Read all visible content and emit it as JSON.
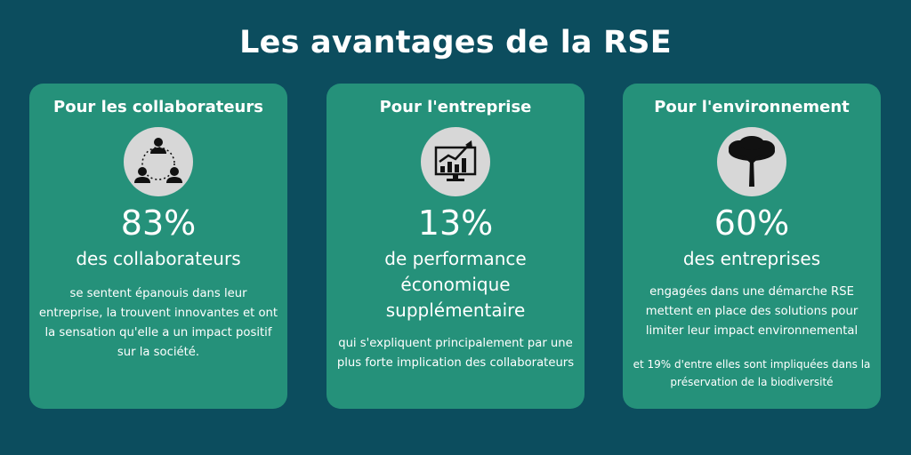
{
  "title": "Les avantages de la RSE",
  "cards": [
    {
      "heading": "Pour les collaborateurs",
      "icon": "people-network-icon",
      "stat": "83%",
      "subtitle": "des collaborateurs",
      "description": "se sentent épanouis dans leur entreprise, la trouvent innovantes et ont la sensation qu'elle a un impact positif sur la société."
    },
    {
      "heading": "Pour l'entreprise",
      "icon": "growth-chart-monitor-icon",
      "stat": "13%",
      "subtitle": "de performance économique supplémentaire",
      "description": "qui s'expliquent principalement par une plus forte implication des collaborateurs"
    },
    {
      "heading": "Pour l'environnement",
      "icon": "tree-icon",
      "stat": "60%",
      "subtitle": "des entreprises",
      "description": "engagées dans une démarche RSE mettent en place des solutions pour limiter leur impact environnemental",
      "extra": "et 19% d'entre elles sont impliquées dans la préservation de la biodiversité"
    }
  ],
  "colors": {
    "background": "#0c4d5e",
    "card": "#25917a",
    "icon_circle": "#d7d7d7",
    "icon": "#111111",
    "text": "#ffffff"
  }
}
